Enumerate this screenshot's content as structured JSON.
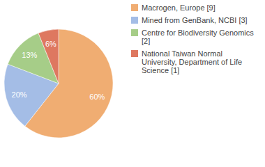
{
  "chart_data": {
    "type": "pie",
    "categories": [
      "Macrogen, Europe [9]",
      "Mined from GenBank, NCBI [3]",
      "Centre for Biodiversity Genomics [2]",
      "National Taiwan Normal University, Department of Life Science [1]"
    ],
    "values": [
      60,
      20,
      13,
      6
    ],
    "value_labels": [
      "60%",
      "20%",
      "13%",
      "6%"
    ],
    "colors": [
      "#f0ad72",
      "#a4bde6",
      "#a6cd88",
      "#de7860"
    ],
    "data_labels": true,
    "legend": "right"
  }
}
